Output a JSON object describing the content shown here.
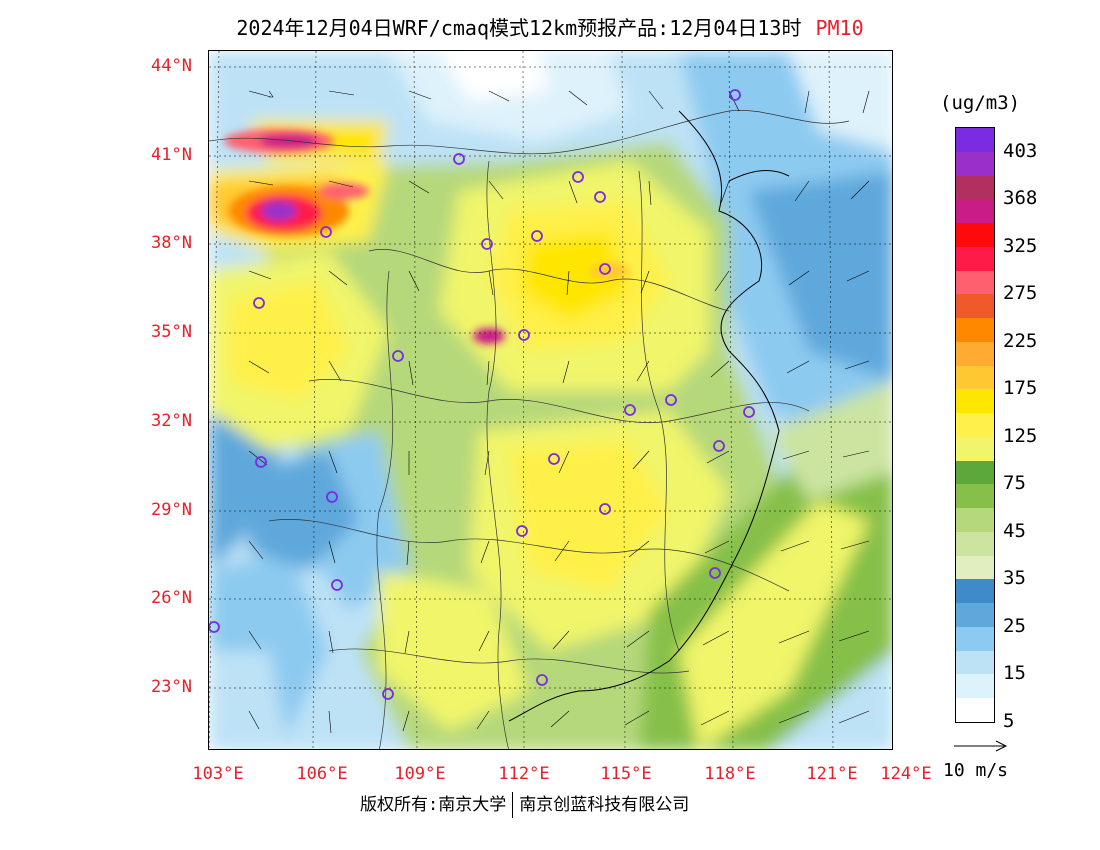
{
  "title": "2024年12月04日WRF/cmaq模式12km预报产品:12月04日13时",
  "variable": "PM10",
  "latitude_labels": [
    "44°N",
    "41°N",
    "38°N",
    "35°N",
    "32°N",
    "29°N",
    "26°N",
    "23°N"
  ],
  "longitude_labels": [
    "103°E",
    "106°E",
    "109°E",
    "112°E",
    "115°E",
    "118°E",
    "121°E",
    "124°E"
  ],
  "legend": {
    "unit": "(ug/m3)",
    "labels": [
      "403",
      "368",
      "325",
      "275",
      "225",
      "175",
      "125",
      "75",
      "45",
      "35",
      "25",
      "15",
      "5"
    ],
    "colors": [
      "#7b2be2",
      "#9a30c8",
      "#b13060",
      "#c91c87",
      "#ff0a0a",
      "#ff1a4a",
      "#ff6070",
      "#f05a2a",
      "#ff8800",
      "#ffaa30",
      "#ffc832",
      "#ffe600",
      "#fff04a",
      "#f0f56a",
      "#5da83a",
      "#86c04a",
      "#b5d87a",
      "#cce4a0",
      "#e0eec0",
      "#3f8ac8",
      "#5ea8dc",
      "#8dcaf0",
      "#bde2f6",
      "#def2fb",
      "#ffffff"
    ]
  },
  "wind_reference": {
    "label": "10 m/s"
  },
  "copyright": {
    "part1": "版权所有:南京大学",
    "part2": "南京创蓝科技有限公司"
  }
}
